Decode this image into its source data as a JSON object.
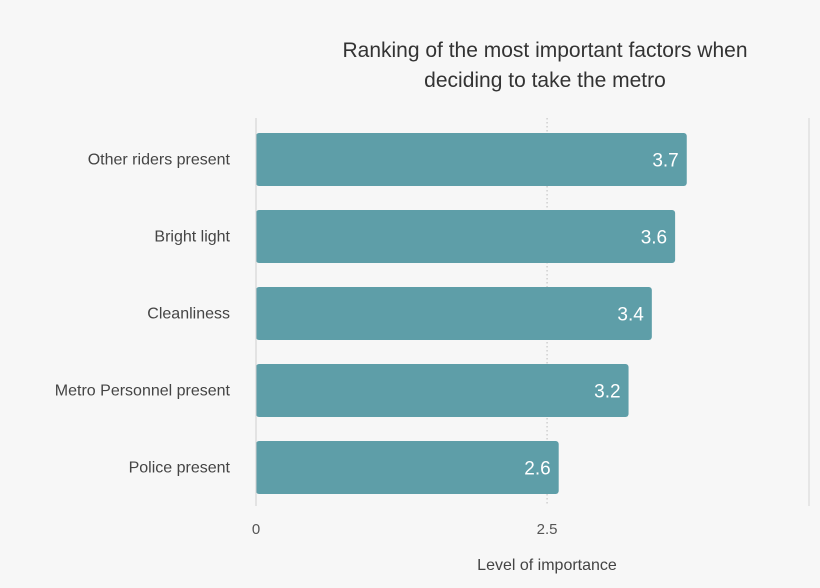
{
  "chart_data": {
    "type": "bar",
    "orientation": "horizontal",
    "title_lines": [
      "Ranking of the most important factors when",
      "deciding to take the metro"
    ],
    "xlabel": "Level of importance",
    "ylabel": "",
    "categories": [
      "Other riders present",
      "Bright light",
      "Cleanliness",
      "Metro Personnel present",
      "Police present"
    ],
    "values": [
      3.7,
      3.6,
      3.4,
      3.2,
      2.6
    ],
    "value_labels": [
      "3.7",
      "3.6",
      "3.4",
      "3.2",
      "2.6"
    ],
    "xlim": [
      0,
      4.75
    ],
    "xticks": [
      0,
      2.5
    ],
    "xtick_labels": [
      "0",
      "2.5"
    ],
    "bar_color": "#5e9ea8",
    "grid": "vertical dotted at 2.5",
    "legend": "none"
  }
}
